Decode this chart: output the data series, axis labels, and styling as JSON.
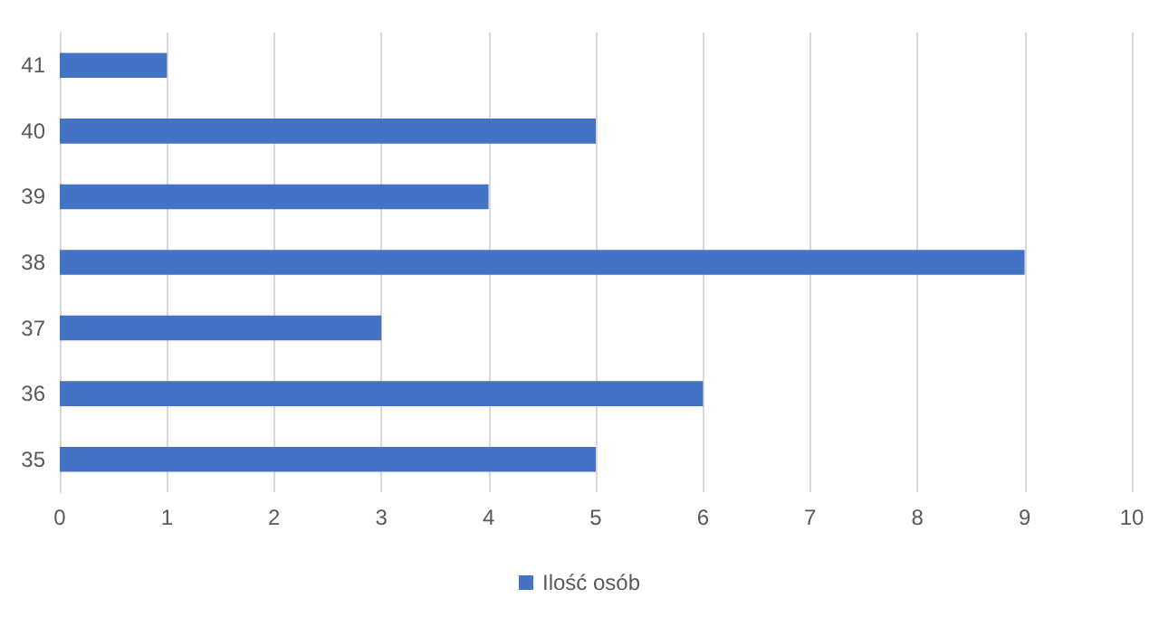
{
  "chart_data": {
    "type": "bar",
    "orientation": "horizontal",
    "categories": [
      "41",
      "40",
      "39",
      "38",
      "37",
      "36",
      "35"
    ],
    "series": [
      {
        "name": "Ilość osób",
        "color": "#4472c4",
        "values": [
          1,
          5,
          4,
          9,
          3,
          6,
          5
        ]
      }
    ],
    "xlim": [
      0,
      10
    ],
    "xticks": [
      0,
      1,
      2,
      3,
      4,
      5,
      6,
      7,
      8,
      9,
      10
    ],
    "grid": "x",
    "legend": "bottom"
  }
}
